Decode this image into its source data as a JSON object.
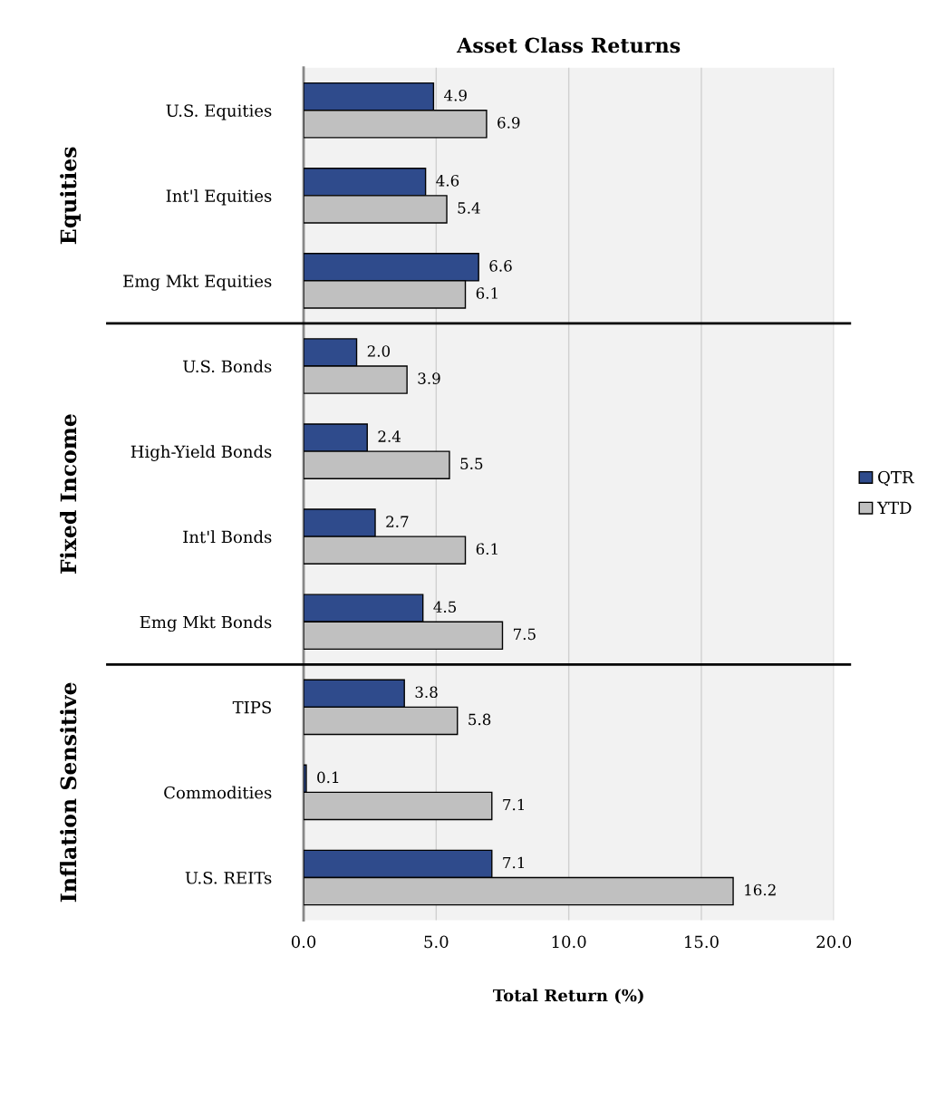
{
  "chart_data": {
    "type": "bar",
    "orientation": "horizontal",
    "title": "Asset Class Returns",
    "xlabel": "Total Return (%)",
    "categories": [
      "U.S. Equities",
      "Int'l Equities",
      "Emg Mkt Equities",
      "U.S. Bonds",
      "High-Yield Bonds",
      "Int'l Bonds",
      "Emg Mkt Bonds",
      "TIPS",
      "Commodities",
      "U.S. REITs"
    ],
    "series": [
      {
        "name": "QTR",
        "color": "#2f4b8c",
        "values": [
          4.9,
          4.6,
          6.6,
          2.0,
          2.4,
          2.7,
          4.5,
          3.8,
          0.1,
          7.1
        ],
        "value_labels": [
          "4.9",
          "4.6",
          "6.6",
          "2.0",
          "2.4",
          "2.7",
          "4.5",
          "3.8",
          "0.1",
          "7.1"
        ]
      },
      {
        "name": "YTD",
        "color": "#c0c0c0",
        "values": [
          6.9,
          5.4,
          6.1,
          3.9,
          5.5,
          6.1,
          7.5,
          5.8,
          7.1,
          16.2
        ],
        "value_labels": [
          "6.9",
          "5.4",
          "6.1",
          "3.9",
          "5.5",
          "6.1",
          "7.5",
          "5.8",
          "7.1",
          "16.2"
        ]
      }
    ],
    "xlim": [
      0,
      20
    ],
    "xticks": [
      {
        "value": 0,
        "label": "0.0"
      },
      {
        "value": 5,
        "label": "5.0"
      },
      {
        "value": 10,
        "label": "10.0"
      },
      {
        "value": 15,
        "label": "15.0"
      },
      {
        "value": 20,
        "label": "20.0"
      }
    ],
    "grid": "x",
    "legend": "right",
    "annotations": [
      "Equities",
      "Fixed Income",
      "Inflation Sensitive"
    ]
  }
}
